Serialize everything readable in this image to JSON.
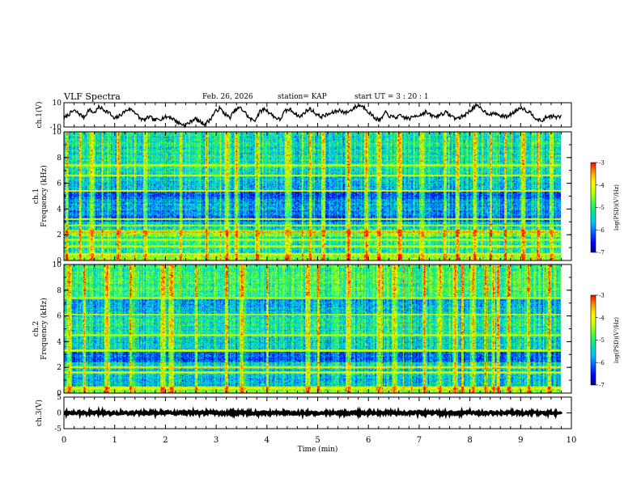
{
  "header": {
    "title": "VLF Spectra",
    "date": "Feb. 26, 2026",
    "station": "station= KAP",
    "start_ut": "start  UT  =   3  : 20 : 1"
  },
  "colors": {
    "waveform": "#000000",
    "axis": "#000000",
    "background": "#ffffff",
    "colormap": [
      "#00008a",
      "#0000ff",
      "#0060ff",
      "#00c8ff",
      "#00e6a0",
      "#40ff40",
      "#c8ff00",
      "#ffff00",
      "#ffa000",
      "#ff0000",
      "#ffffff"
    ]
  },
  "chart_data": [
    {
      "type": "line",
      "name": "ch1-waveform",
      "ylabel": "ch.1(V)",
      "ylim": [
        -10,
        10
      ],
      "yticks": [
        "10",
        "-10"
      ],
      "xlim": [
        0,
        10
      ],
      "x_end": 9.8,
      "samples": [
        -3.0,
        0.5,
        3.5,
        1.0,
        -2.0,
        4.5,
        1.5,
        6.5,
        4.0,
        2.0,
        -3.5,
        -1.0,
        2.5,
        5.0,
        3.0,
        -2.5,
        -4.5,
        -1.5,
        -4.5,
        -3.5,
        -2.0,
        -1.5,
        -4.0,
        -7.0,
        -8.5,
        -6.5,
        -3.0,
        -5.5,
        -7.5,
        -4.5,
        2.0,
        5.5,
        1.0,
        -2.5,
        3.5,
        6.0,
        2.5,
        -3.5,
        -4.5,
        2.5,
        5.0,
        1.5,
        -2.0,
        -4.0,
        3.0,
        4.5,
        1.5,
        -2.0,
        2.5,
        5.0,
        1.5,
        -1.5,
        -0.5,
        1.0,
        2.5,
        4.0,
        1.5,
        3.5,
        6.5,
        8.0,
        5.5,
        1.0,
        -3.0,
        -4.5,
        2.0,
        -1.5,
        -2.0,
        -1.0,
        -2.5,
        -3.0,
        -0.5,
        0.0,
        2.5,
        -0.5,
        -1.5,
        0.5,
        2.0,
        -0.5,
        -3.0,
        -2.0,
        0.5,
        4.0,
        7.5,
        5.5,
        2.0,
        0.5,
        1.0,
        -1.0,
        -1.5,
        0.5,
        3.5,
        6.5,
        3.5,
        1.5,
        -3.0,
        -5.5,
        -2.0,
        -1.0,
        -2.0,
        -1.5
      ]
    },
    {
      "type": "heatmap",
      "name": "ch1-spectrogram",
      "ylabel": "ch.1",
      "ylabel2": "Frequency (kHz)",
      "ylim": [
        0,
        10
      ],
      "yticks": [
        "0",
        "2",
        "4",
        "6",
        "8",
        "10"
      ],
      "xlim": [
        0,
        10
      ],
      "x_end": 9.8,
      "colorbar": {
        "label": "log(PSD)(V²/Hz)",
        "range": [
          -7,
          -3
        ],
        "ticks": [
          "-3",
          "-4",
          "-5",
          "-6",
          "-7"
        ]
      },
      "bands": [
        {
          "from": 0.0,
          "to": 0.5,
          "level": 0.62
        },
        {
          "from": 0.5,
          "to": 1.8,
          "level": 0.45
        },
        {
          "from": 1.8,
          "to": 2.4,
          "level": 0.58
        },
        {
          "from": 2.4,
          "to": 3.0,
          "level": 0.38
        },
        {
          "from": 3.0,
          "to": 3.5,
          "level": 0.2
        },
        {
          "from": 3.5,
          "to": 4.8,
          "level": 0.3
        },
        {
          "from": 4.8,
          "to": 5.4,
          "level": 0.2
        },
        {
          "from": 5.4,
          "to": 6.6,
          "level": 0.36
        },
        {
          "from": 6.6,
          "to": 8.0,
          "level": 0.42
        },
        {
          "from": 8.0,
          "to": 10.0,
          "level": 0.44
        }
      ],
      "lines": [
        {
          "f": 0.5,
          "level": 0.82
        },
        {
          "f": 1.1,
          "level": 0.72
        },
        {
          "f": 1.6,
          "level": 0.7
        },
        {
          "f": 2.2,
          "level": 0.92
        },
        {
          "f": 2.7,
          "level": 0.7
        },
        {
          "f": 3.2,
          "level": 0.75
        },
        {
          "f": 5.4,
          "level": 0.8
        },
        {
          "f": 6.6,
          "level": 0.75
        },
        {
          "f": 7.4,
          "level": 0.72
        }
      ],
      "bursts": [
        0.05,
        0.32,
        0.55,
        1.05,
        1.6,
        2.3,
        2.8,
        3.2,
        3.4,
        3.8,
        4.4,
        4.85,
        5.1,
        5.6,
        5.95,
        6.2,
        6.6,
        7.05,
        7.5,
        7.75,
        8.1,
        8.4,
        8.7,
        9.05,
        9.35,
        9.6
      ]
    },
    {
      "type": "heatmap",
      "name": "ch2-spectrogram",
      "ylabel": "ch.2",
      "ylabel2": "Frequency (kHz)",
      "ylim": [
        0,
        10
      ],
      "yticks": [
        "0",
        "2",
        "4",
        "6",
        "8",
        "10"
      ],
      "xlim": [
        0,
        10
      ],
      "x_end": 9.8,
      "colorbar": {
        "label": "log(PSD)(V²/Hz)",
        "range": [
          -7,
          -3
        ],
        "ticks": [
          "-3",
          "-4",
          "-5",
          "-6",
          "-7"
        ]
      },
      "bands": [
        {
          "from": 0.0,
          "to": 0.5,
          "level": 0.6
        },
        {
          "from": 0.5,
          "to": 1.8,
          "level": 0.35
        },
        {
          "from": 1.8,
          "to": 2.4,
          "level": 0.42
        },
        {
          "from": 2.4,
          "to": 3.3,
          "level": 0.2
        },
        {
          "from": 3.3,
          "to": 4.5,
          "level": 0.38
        },
        {
          "from": 4.5,
          "to": 6.0,
          "level": 0.42
        },
        {
          "from": 6.0,
          "to": 7.5,
          "level": 0.32
        },
        {
          "from": 7.5,
          "to": 10.0,
          "level": 0.5
        }
      ],
      "lines": [
        {
          "f": 0.4,
          "level": 0.82
        },
        {
          "f": 1.6,
          "level": 0.72
        },
        {
          "f": 2.0,
          "level": 0.85
        },
        {
          "f": 3.3,
          "level": 0.75
        },
        {
          "f": 4.5,
          "level": 0.7
        },
        {
          "f": 6.1,
          "level": 0.72
        },
        {
          "f": 7.4,
          "level": 0.7
        }
      ],
      "bursts": [
        0.1,
        0.4,
        0.85,
        1.3,
        1.95,
        2.1,
        2.6,
        3.2,
        3.5,
        4.0,
        4.8,
        5.0,
        5.6,
        6.2,
        6.5,
        7.1,
        7.4,
        7.7,
        7.85,
        8.05,
        8.3,
        8.45,
        8.55,
        8.75,
        9.15,
        9.55
      ]
    },
    {
      "type": "line",
      "name": "ch3-trace",
      "ylabel": "ch.3(V)",
      "ylim": [
        -5,
        5
      ],
      "yticks": [
        "5",
        "0",
        "-5"
      ],
      "xlim": [
        0,
        10
      ],
      "x_end": 9.8,
      "level": 0,
      "xlabel": "Time (min)",
      "xticks": [
        "0",
        "1",
        "2",
        "3",
        "4",
        "5",
        "6",
        "7",
        "8",
        "9",
        "10"
      ]
    }
  ]
}
